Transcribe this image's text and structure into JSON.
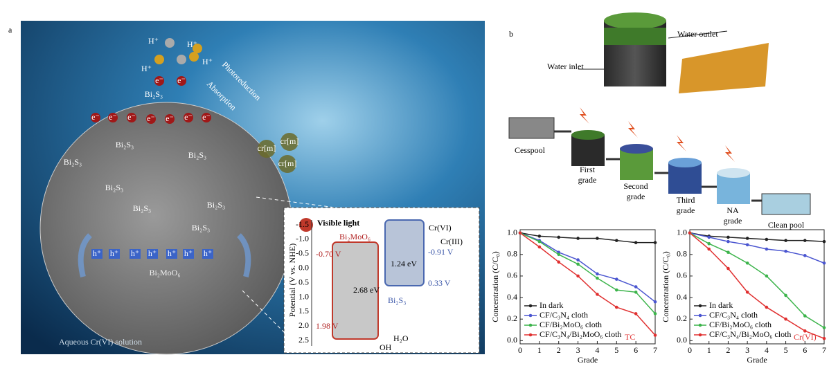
{
  "panel_a": {
    "label": "a",
    "protons": [
      "H⁺",
      "H⁺",
      "H⁺",
      "H⁺"
    ],
    "electrons": [
      "e⁻",
      "e⁻",
      "e⁻",
      "e⁻",
      "e⁻",
      "e⁻",
      "e⁻",
      "e⁻",
      "e⁻"
    ],
    "bi2s3_labels": [
      "Bi₂S₃",
      "Bi₂S₃",
      "Bi₂S₃",
      "Bi₂S₃",
      "Bi₂S₃",
      "Bi₂S₃",
      "Bi₂S₃",
      "Bi₂S₃"
    ],
    "photoreduction": "Photoreduction",
    "absorption": "Absorption",
    "chromium_labels": [
      "cr[m]",
      "cr[m]",
      "cr[m]"
    ],
    "holes": [
      "h⁺",
      "h⁺",
      "h⁺",
      "h⁺",
      "h⁺",
      "h⁺",
      "h⁺"
    ],
    "core": "Bi₂MoO₆",
    "caption": "Aqueous Cr(VI) solution",
    "inset": {
      "axis_label": "Potential (V vs. NHE)",
      "ticks": [
        "-1.5",
        "-1.0",
        "-0.5",
        "0.0",
        "0.5",
        "1.0",
        "1.5",
        "2.0",
        "2.5"
      ],
      "visible_light": "Visible light",
      "bi2moo6": "Bi₂MoO₆",
      "bi2moo6_cb": "-0.70 V",
      "bi2moo6_vb": "1.98 V",
      "bi2moo6_gap": "2.68 eV",
      "bi2s3": "Bi₂S₃",
      "bi2s3_cb": "-0.91 V",
      "bi2s3_vb": "0.33 V",
      "bi2s3_gap": "1.24 eV",
      "cr6": "Cr(VI)",
      "cr3": "Cr(III)",
      "water": "H₂O",
      "hydroxyl": "OH"
    }
  },
  "panel_b": {
    "label": "b",
    "water_outlet": "Water outlet",
    "water_inlet": "Water inlet",
    "cesspool": "Cesspool",
    "grades": [
      [
        "First",
        "grade"
      ],
      [
        "Second",
        "grade"
      ],
      [
        "Third",
        "grade"
      ],
      [
        "NA",
        "grade"
      ]
    ],
    "clean_pool": "Clean pool"
  },
  "chart_data": [
    {
      "type": "line",
      "annotation": "TC",
      "x_label": "Grade",
      "y_label": "Concentration (C/C₀)",
      "x": [
        0,
        1,
        2,
        3,
        4,
        5,
        6,
        7
      ],
      "xlim": [
        0,
        7
      ],
      "xticks": [
        0,
        1,
        2,
        3,
        4,
        5,
        6,
        7
      ],
      "ylim": [
        -0.03,
        1.03
      ],
      "yticks": [
        {
          "value": 0,
          "label": "0.0"
        },
        {
          "value": 0.2,
          "label": "0.2"
        },
        {
          "value": 0.4,
          "label": "0.4"
        },
        {
          "value": 0.6,
          "label": "0.6"
        },
        {
          "value": 0.8,
          "label": "0.8"
        },
        {
          "value": 1,
          "label": "1.0"
        }
      ],
      "series": [
        {
          "name": "In dark",
          "color": "#222222",
          "values": [
            1.0,
            0.97,
            0.96,
            0.95,
            0.95,
            0.93,
            0.91,
            0.91
          ]
        },
        {
          "name": "CF/C₃N₄ cloth",
          "color": "#4a55d0",
          "values": [
            1.0,
            0.93,
            0.82,
            0.75,
            0.62,
            0.57,
            0.5,
            0.36
          ]
        },
        {
          "name": "CF/Bi₂MoO₆ cloth",
          "color": "#3cb44b",
          "values": [
            1.0,
            0.92,
            0.8,
            0.71,
            0.58,
            0.47,
            0.45,
            0.25
          ]
        },
        {
          "name": "CF/C₃N₄/Bi₂MoO₆ cloth",
          "color": "#e03030",
          "values": [
            1.0,
            0.87,
            0.73,
            0.6,
            0.43,
            0.31,
            0.25,
            0.05
          ]
        }
      ]
    },
    {
      "type": "line",
      "annotation": "Cr(VI)",
      "x_label": "Grade",
      "y_label": "Concentration (C/C₀)",
      "x": [
        0,
        1,
        2,
        3,
        4,
        5,
        6,
        7
      ],
      "xlim": [
        0,
        7
      ],
      "xticks": [
        0,
        1,
        2,
        3,
        4,
        5,
        6,
        7
      ],
      "ylim": [
        -0.03,
        1.03
      ],
      "yticks": [
        {
          "value": 0,
          "label": "0.0"
        },
        {
          "value": 0.2,
          "label": "0.2"
        },
        {
          "value": 0.4,
          "label": "0.4"
        },
        {
          "value": 0.6,
          "label": "0.6"
        },
        {
          "value": 0.8,
          "label": "0.8"
        },
        {
          "value": 1,
          "label": "1.0"
        }
      ],
      "series": [
        {
          "name": "In dark",
          "color": "#222222",
          "values": [
            1.0,
            0.97,
            0.96,
            0.95,
            0.94,
            0.93,
            0.93,
            0.92
          ]
        },
        {
          "name": "CF/C₃N₄ cloth",
          "color": "#4a55d0",
          "values": [
            1.0,
            0.96,
            0.92,
            0.89,
            0.85,
            0.83,
            0.79,
            0.72
          ]
        },
        {
          "name": "CF/Bi₂MoO₆ cloth",
          "color": "#3cb44b",
          "values": [
            1.0,
            0.9,
            0.82,
            0.72,
            0.6,
            0.42,
            0.23,
            0.12
          ]
        },
        {
          "name": "CF/C₃N₄/Bi₂MoO₆ cloth",
          "color": "#e03030",
          "values": [
            1.0,
            0.85,
            0.67,
            0.45,
            0.31,
            0.2,
            0.09,
            0.02
          ]
        }
      ]
    }
  ]
}
